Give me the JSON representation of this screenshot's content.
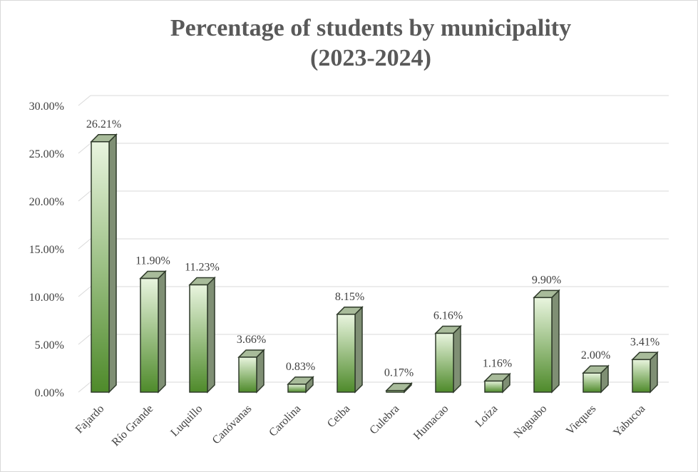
{
  "chart_data": {
    "type": "bar",
    "title_lines": [
      "Percentage of students by municipality",
      "(2023-2024)"
    ],
    "categories": [
      "Fajardo",
      "Río Grande",
      "Luquillo",
      "Canóvanas",
      "Carolina",
      "Ceiba",
      "Culebra",
      "Humacao",
      "Loíza",
      "Naguabo",
      "Vieques",
      "Yabucoa"
    ],
    "values": [
      26.21,
      11.9,
      11.23,
      3.66,
      0.83,
      8.15,
      0.17,
      6.16,
      1.16,
      9.9,
      2.0,
      3.41
    ],
    "value_labels": [
      "26.21%",
      "11.90%",
      "11.23%",
      "3.66%",
      "0.83%",
      "8.15%",
      "0.17%",
      "6.16%",
      "1.16%",
      "9.90%",
      "2.00%",
      "3.41%"
    ],
    "y_ticks": [
      "0.00%",
      "5.00%",
      "10.00%",
      "15.00%",
      "20.00%",
      "25.00%",
      "30.00%"
    ],
    "ylim": [
      0,
      30
    ],
    "grid": true,
    "legend": "none",
    "bar_style": "3d-column",
    "colors": {
      "bar_top": "#e9f5df",
      "bar_bottom": "#4e8a2a",
      "bar_side": "#7f8f74",
      "bar_cap": "#a8bb9a",
      "bar_outline": "#2f3a2a",
      "grid": "#d9d9d9",
      "text": "#404040",
      "title": "#595959"
    }
  }
}
